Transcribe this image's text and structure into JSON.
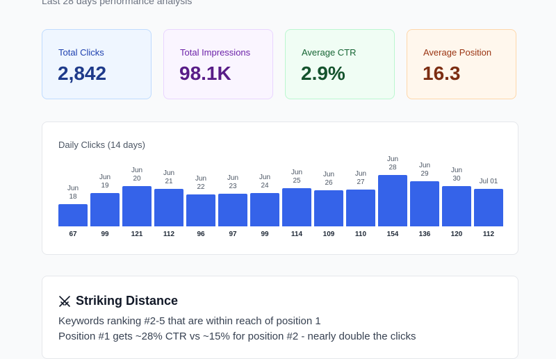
{
  "header": {
    "subtitle": "Last 28 days performance analysis"
  },
  "kpis": [
    {
      "label": "Total Clicks",
      "value": "2,842"
    },
    {
      "label": "Total Impressions",
      "value": "98.1K"
    },
    {
      "label": "Average CTR",
      "value": "2.9%"
    },
    {
      "label": "Average Position",
      "value": "16.3"
    }
  ],
  "chart_data": {
    "type": "bar",
    "title": "Daily Clicks (14 days)",
    "categories": [
      "Jun 18",
      "Jun 19",
      "Jun 20",
      "Jun 21",
      "Jun 22",
      "Jun 23",
      "Jun 24",
      "Jun 25",
      "Jun 26",
      "Jun 27",
      "Jun 28",
      "Jun 29",
      "Jun 30",
      "Jul 01"
    ],
    "values": [
      67,
      99,
      121,
      112,
      96,
      97,
      99,
      114,
      109,
      110,
      154,
      136,
      120,
      112
    ],
    "color": "#3563e9"
  },
  "section": {
    "title": "Striking Distance",
    "lines": [
      "Keywords ranking #2-5 that are within reach of position 1",
      "Position #1 gets ~28% CTR vs ~15% for position #2 - nearly double the clicks"
    ]
  }
}
